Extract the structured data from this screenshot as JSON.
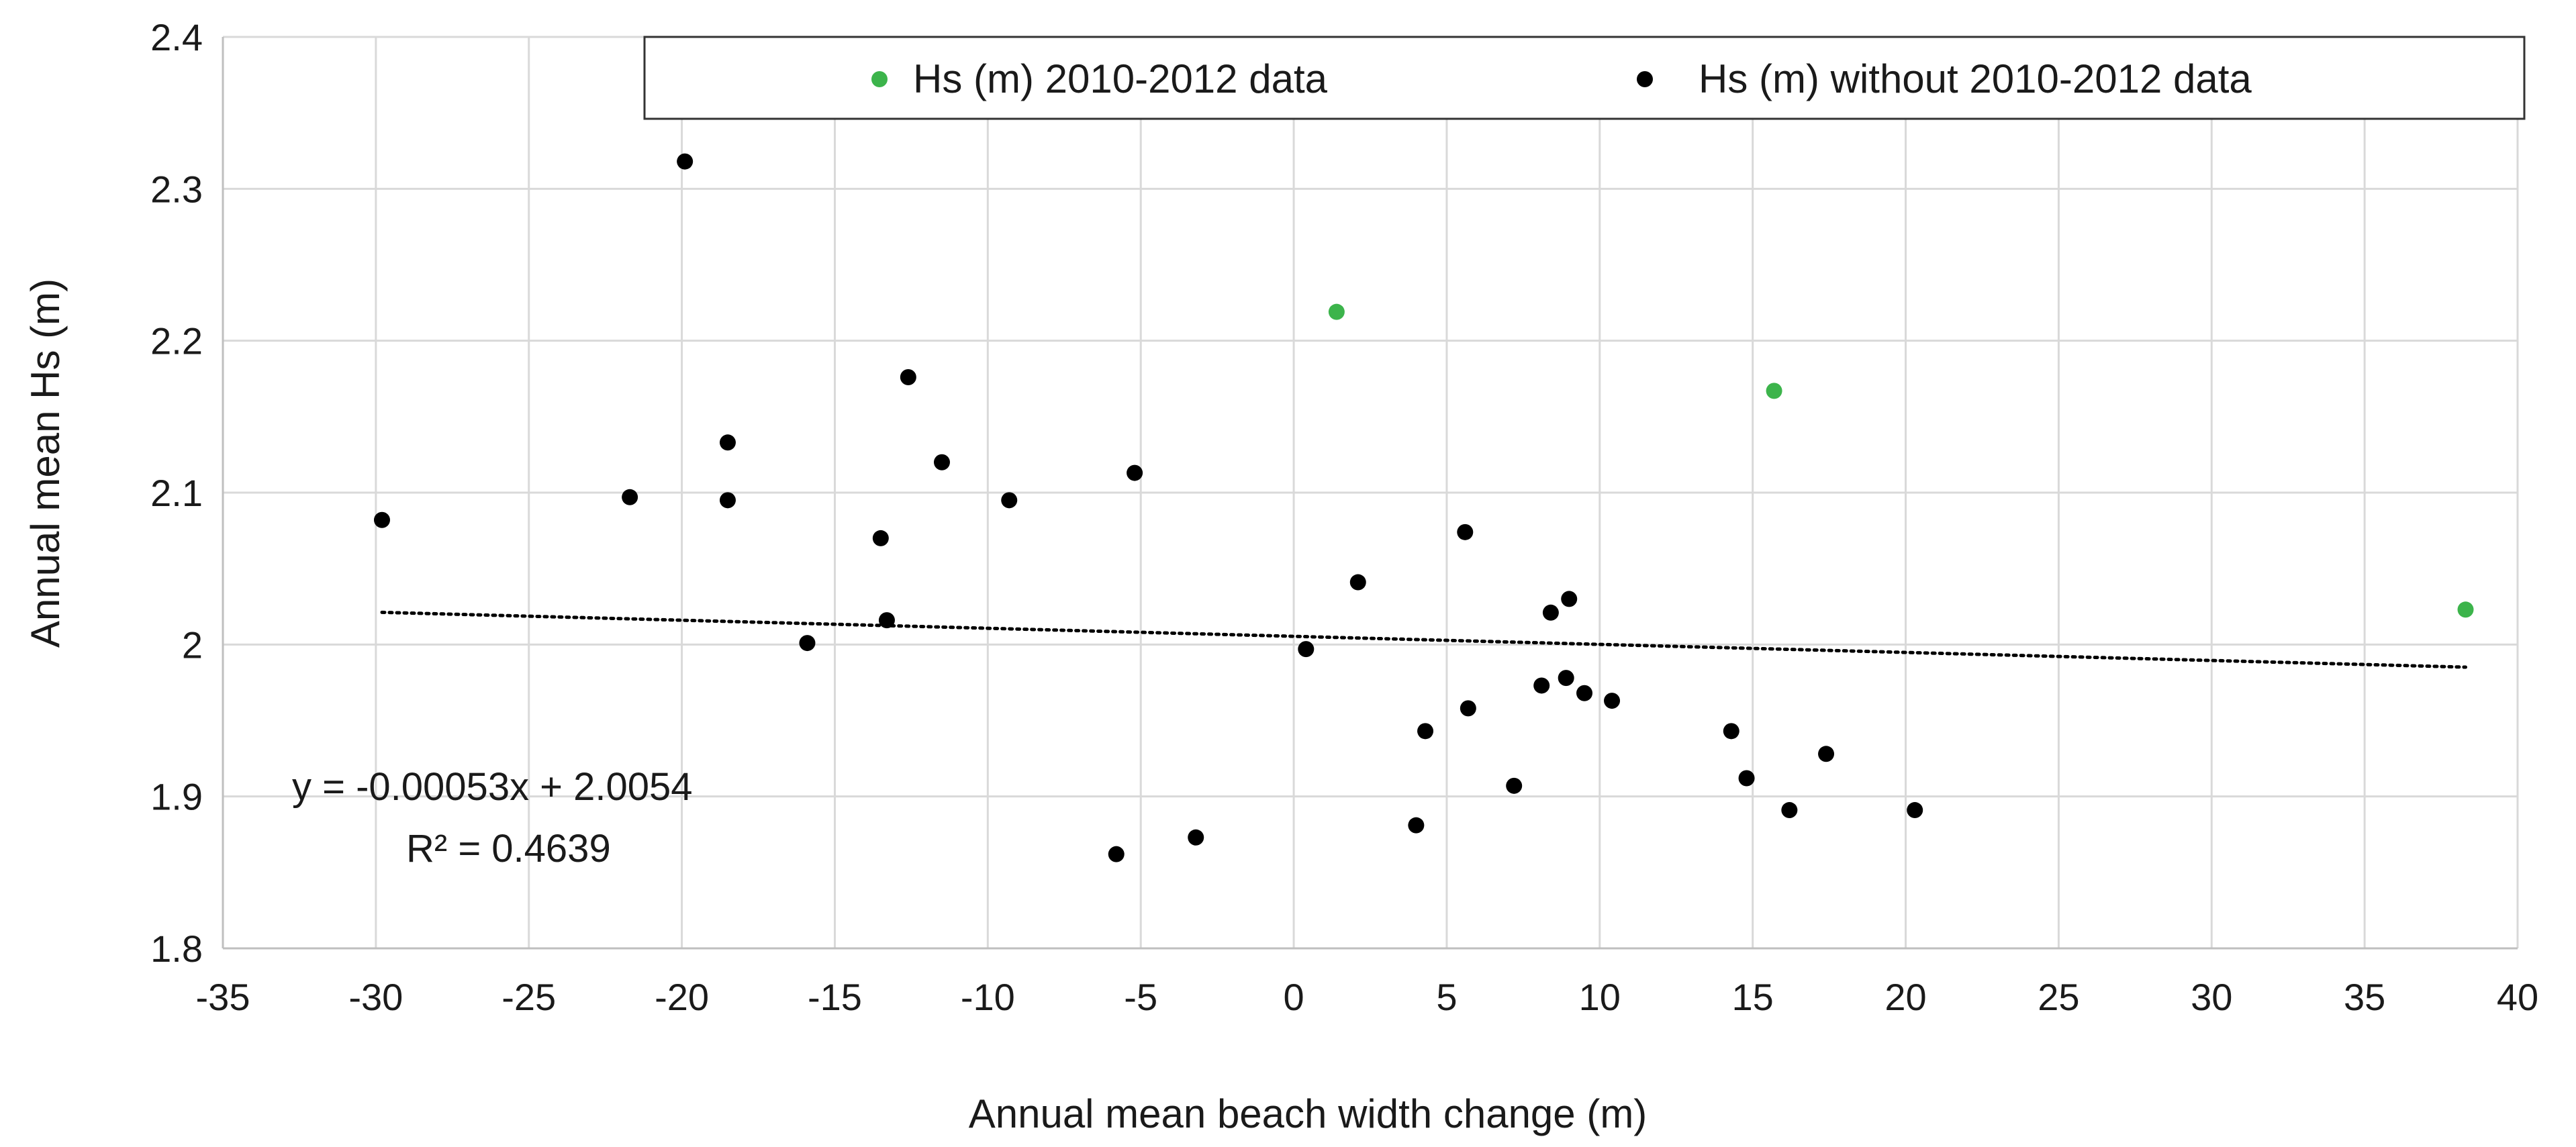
{
  "chart_data": {
    "type": "scatter",
    "title": "",
    "xlabel": "Annual mean beach width change (m)",
    "ylabel": "Annual mean Hs (m)",
    "xlim": [
      -35,
      40
    ],
    "ylim": [
      1.8,
      2.4
    ],
    "x_ticks": [
      -35,
      -30,
      -25,
      -20,
      -15,
      -10,
      -5,
      0,
      5,
      10,
      15,
      20,
      25,
      30,
      35,
      40
    ],
    "y_ticks": [
      1.8,
      1.9,
      2.0,
      2.1,
      2.2,
      2.3,
      2.4
    ],
    "x_tick_labels": [
      "-35",
      "-30",
      "-25",
      "-20",
      "-15",
      "-10",
      "-5",
      "0",
      "5",
      "10",
      "15",
      "20",
      "25",
      "30",
      "35",
      "40"
    ],
    "y_tick_labels": [
      "1.8",
      "1.9",
      "2",
      "2.1",
      "2.2",
      "2.3",
      "2.4"
    ],
    "grid": true,
    "legend_position": "top",
    "series": [
      {
        "name": "Hs (m) 2010-2012 data",
        "color": "#3cb44b",
        "points": [
          [
            1.4,
            2.219
          ],
          [
            15.7,
            2.167
          ],
          [
            38.3,
            2.023
          ]
        ]
      },
      {
        "name": "Hs (m) without 2010-2012 data",
        "color": "#000000",
        "points": [
          [
            -29.8,
            2.082
          ],
          [
            -21.7,
            2.097
          ],
          [
            -19.9,
            2.318
          ],
          [
            -18.5,
            2.133
          ],
          [
            -18.5,
            2.095
          ],
          [
            -15.9,
            2.001
          ],
          [
            -13.5,
            2.07
          ],
          [
            -13.3,
            2.016
          ],
          [
            -12.6,
            2.176
          ],
          [
            -11.5,
            2.12
          ],
          [
            -9.3,
            2.095
          ],
          [
            -5.2,
            2.113
          ],
          [
            -5.8,
            1.862
          ],
          [
            -3.2,
            1.873
          ],
          [
            0.4,
            1.997
          ],
          [
            2.1,
            2.041
          ],
          [
            4.0,
            1.881
          ],
          [
            4.3,
            1.943
          ],
          [
            5.6,
            2.074
          ],
          [
            5.7,
            1.958
          ],
          [
            7.2,
            1.907
          ],
          [
            8.1,
            1.973
          ],
          [
            8.4,
            2.021
          ],
          [
            8.9,
            1.978
          ],
          [
            9.0,
            2.03
          ],
          [
            9.5,
            1.968
          ],
          [
            10.4,
            1.963
          ],
          [
            14.3,
            1.943
          ],
          [
            14.8,
            1.912
          ],
          [
            16.2,
            1.891
          ],
          [
            17.4,
            1.928
          ],
          [
            20.3,
            1.891
          ]
        ]
      }
    ],
    "trendline": {
      "style": "dotted",
      "slope": -0.00053,
      "intercept": 2.0054,
      "x_range": [
        -29.8,
        38.3
      ],
      "equation": "y = -0.00053x + 2.0054",
      "r_squared": "R² = 0.4639"
    }
  }
}
